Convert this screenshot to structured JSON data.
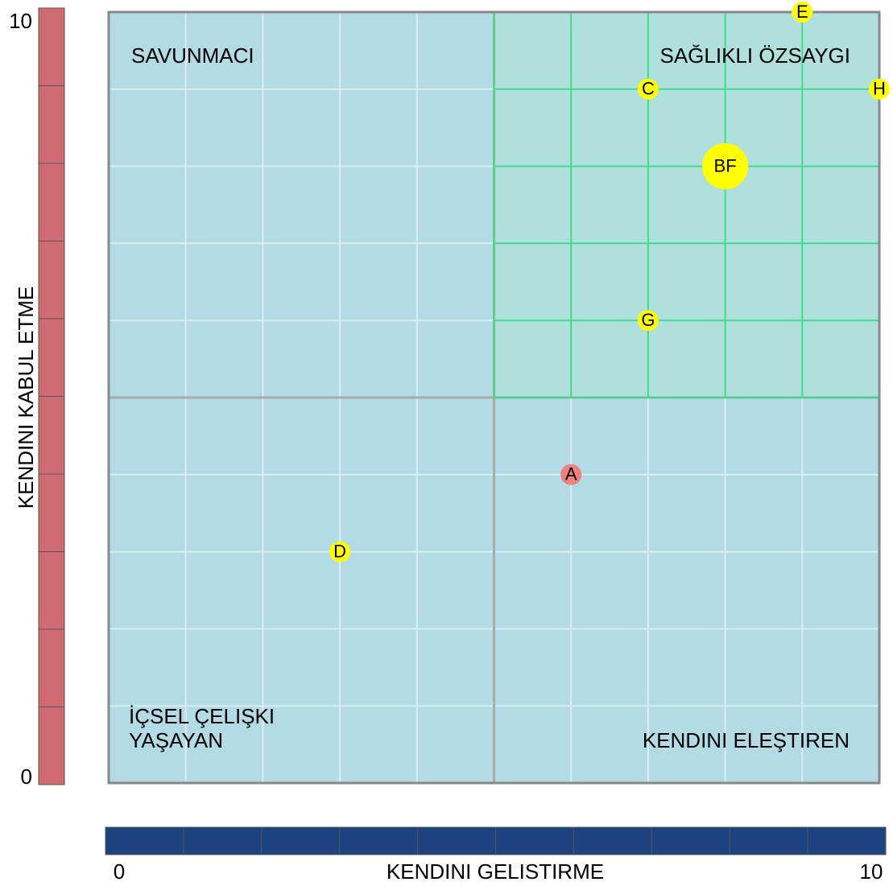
{
  "chart_data": {
    "type": "scatter",
    "xlabel": "KENDINI GELISTIRME",
    "ylabel": "KENDINI KABUL ETME",
    "xlim": [
      0,
      10
    ],
    "ylim": [
      0,
      10
    ],
    "xticks": [
      0,
      10
    ],
    "yticks": [
      0,
      10
    ],
    "xminor": [
      1,
      2,
      3,
      4,
      5,
      6,
      7,
      8,
      9
    ],
    "yminor": [
      1,
      2,
      3,
      4,
      5,
      6,
      7,
      8,
      9
    ],
    "divider": {
      "x": 5,
      "y": 5
    },
    "quadrants": {
      "top_left": "SAVUNMACI",
      "top_right": "SAĞLIKLI ÖZSAYGI",
      "bottom_left": [
        "İÇSEL ÇELIŞKI",
        "YAŞAYAN"
      ],
      "bottom_right": "KENDINI ELEŞTIREN"
    },
    "colors": {
      "background": "#b2dbe6",
      "highlight": "#afe0dc",
      "grid": "#d8eef3",
      "highlight_grid": "#3fd98b",
      "x_bar": "#1c4380",
      "y_bar": "#cf6a70"
    },
    "points": [
      {
        "label": "E",
        "x": 9,
        "y": 10,
        "color": "#ffff00",
        "size": 1
      },
      {
        "label": "C",
        "x": 7,
        "y": 9,
        "color": "#ffff00",
        "size": 1
      },
      {
        "label": "H",
        "x": 10,
        "y": 9,
        "color": "#ffff00",
        "size": 1
      },
      {
        "label": "BF",
        "x": 8,
        "y": 8,
        "color": "#ffff00",
        "size": 2.2
      },
      {
        "label": "G",
        "x": 7,
        "y": 6,
        "color": "#ffff00",
        "size": 1
      },
      {
        "label": "A",
        "x": 6,
        "y": 4,
        "color": "#f08080",
        "size": 1
      },
      {
        "label": "D",
        "x": 3,
        "y": 3,
        "color": "#ffff00",
        "size": 1
      }
    ]
  }
}
